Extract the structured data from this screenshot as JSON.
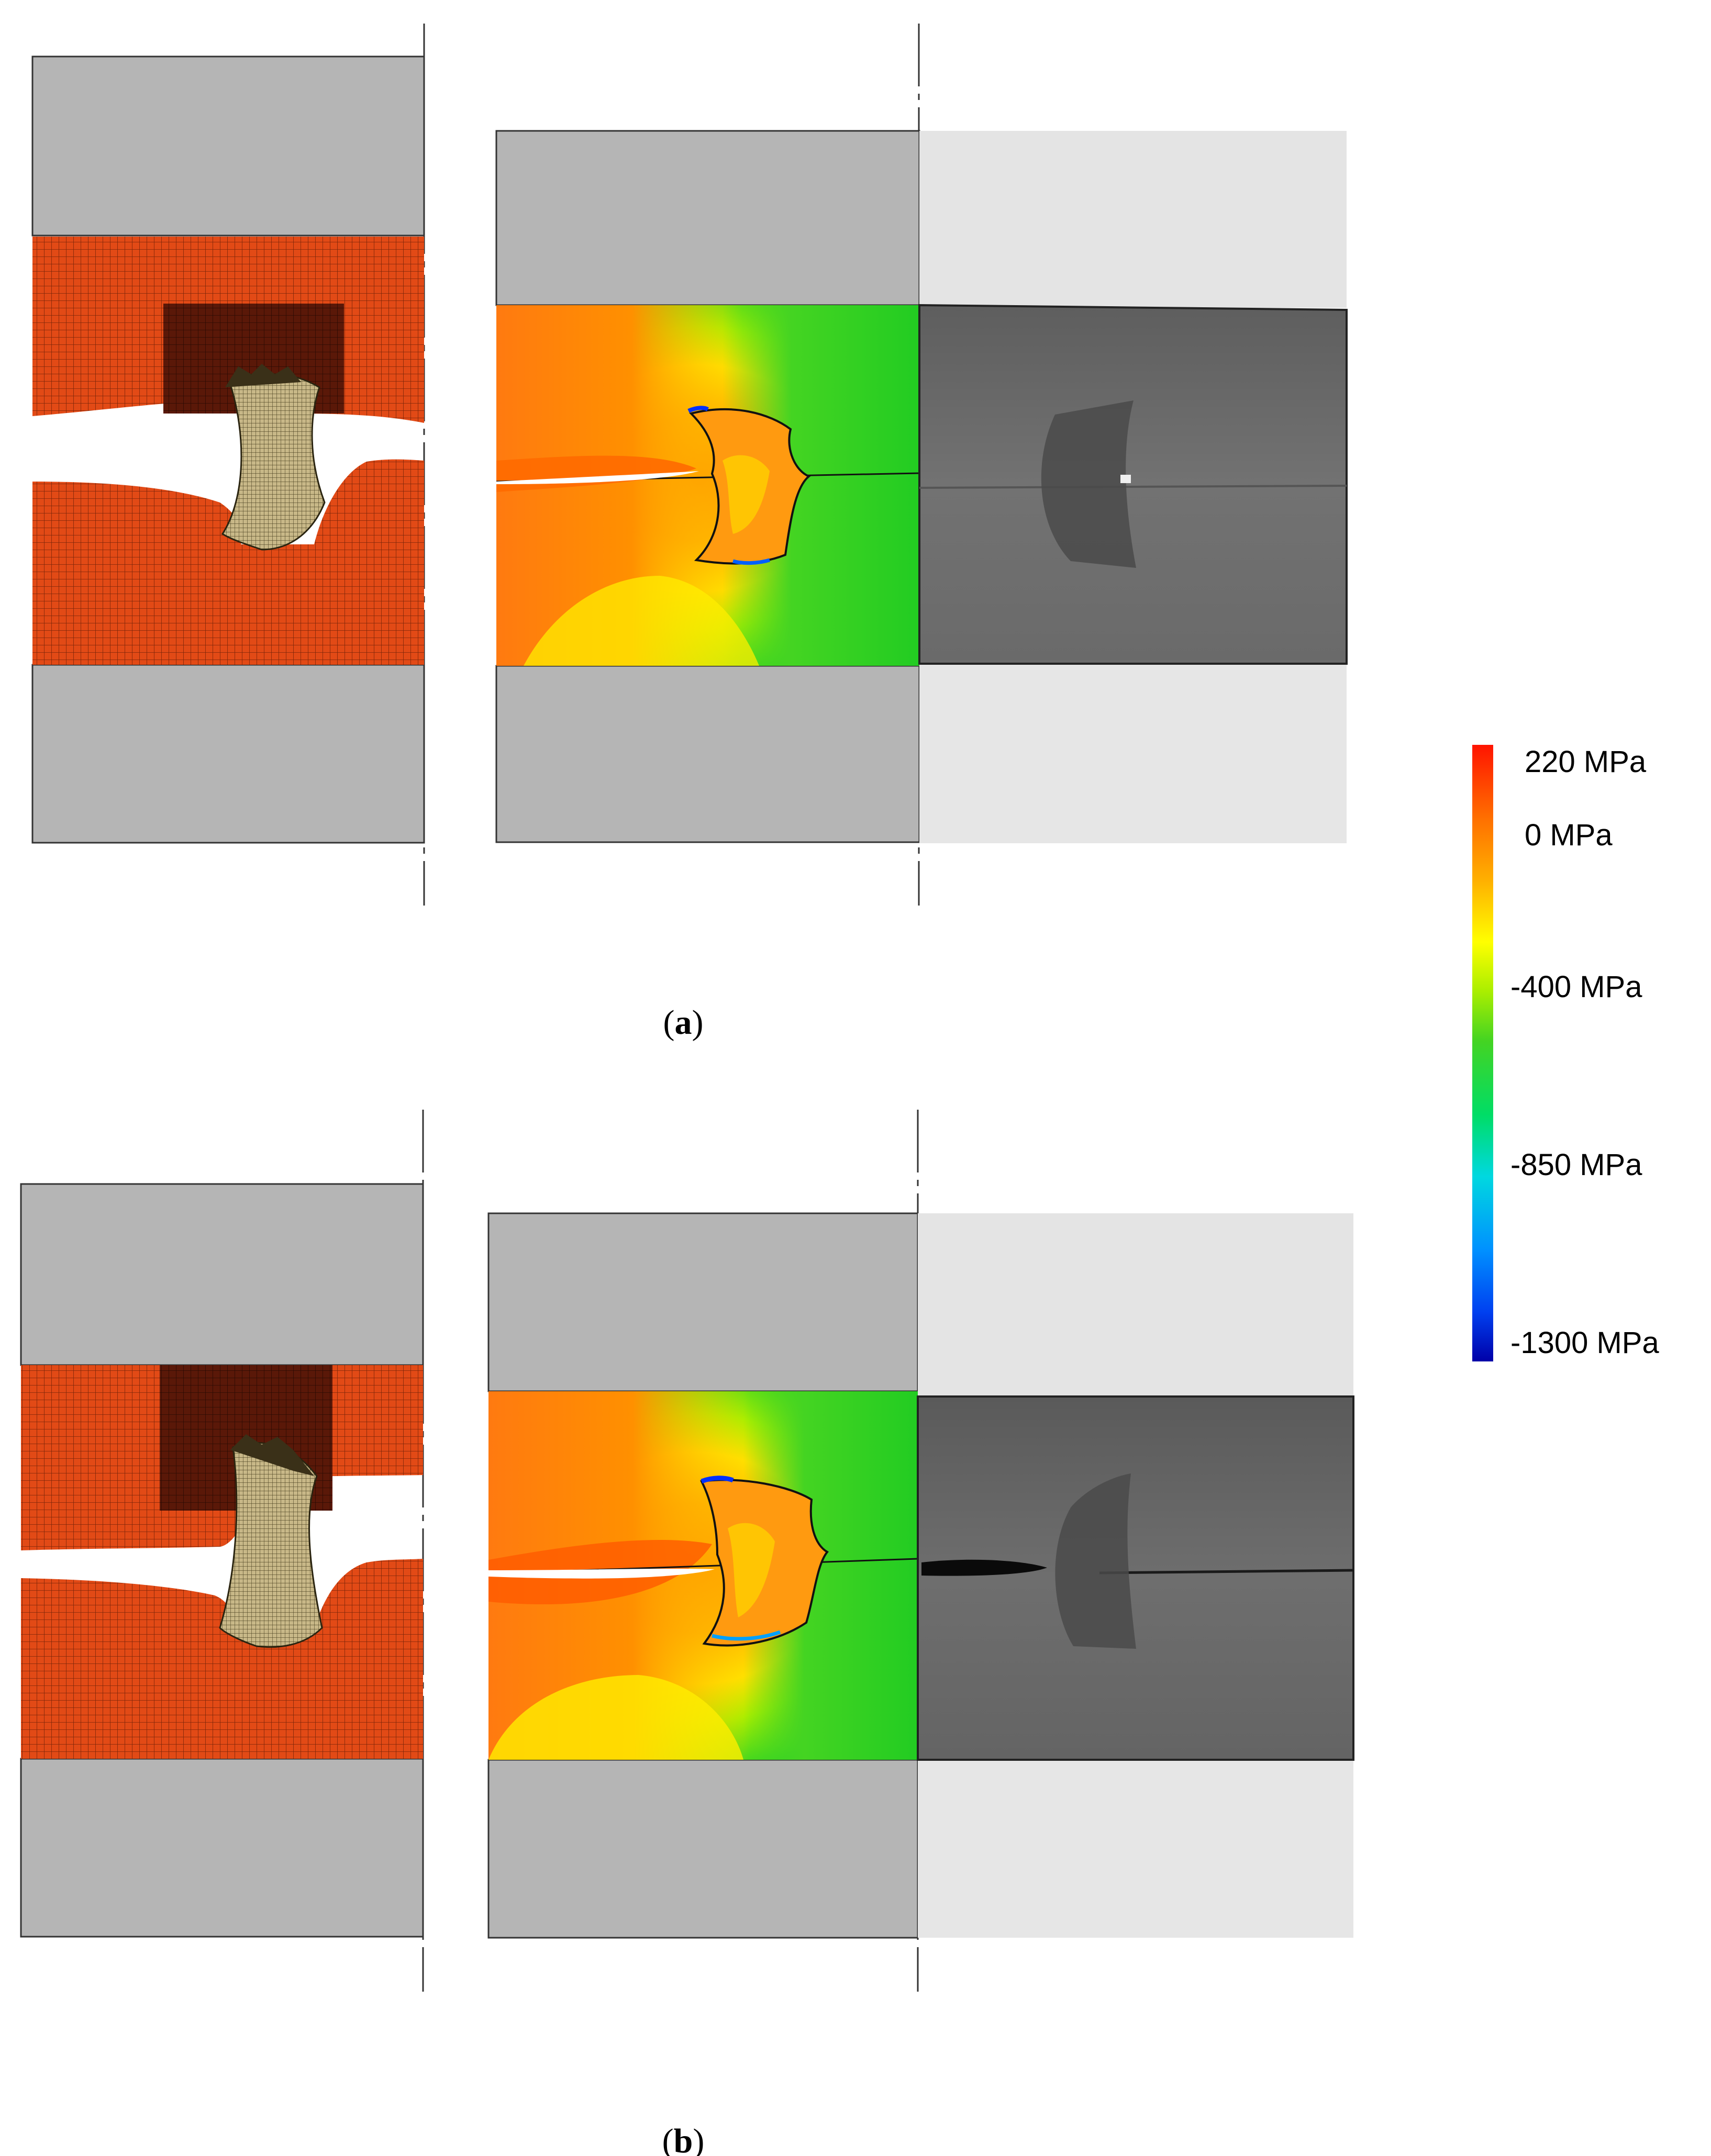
{
  "captions": {
    "a": "a",
    "b": "b"
  },
  "legend": {
    "labels": [
      "220 MPa",
      "0 MPa",
      "-400 MPa",
      "-850 MPa",
      "-1300 MPa"
    ],
    "colors": [
      "#0000a8",
      "#0018d0",
      "#0038f0",
      "#0060ff",
      "#0088ff",
      "#00aaff",
      "#00ccee",
      "#00e0c8",
      "#00e890",
      "#00dd55",
      "#22d422",
      "#66dd10",
      "#aaee00",
      "#ddf500",
      "#ffff00",
      "#ffe000",
      "#ffc000",
      "#ffa800",
      "#ff9000",
      "#ff7800",
      "#ff6000",
      "#ff4400",
      "#ff2a00",
      "#ff1400"
    ]
  },
  "colors": {
    "die_gray": "#b5b5b5",
    "sheet_mesh": "#e24a16",
    "sheet_dark": "#5a1808",
    "rivet": "#c8b888",
    "photo_light": "#e4e4e4",
    "photo_dark": "#6f6f6f"
  }
}
